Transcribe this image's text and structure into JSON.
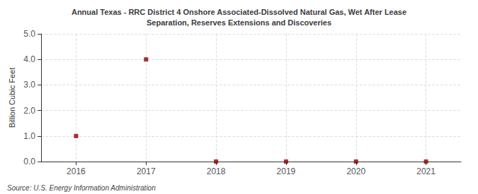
{
  "chart_data": {
    "type": "scatter",
    "title": "Annual Texas - RRC District 4 Onshore Associated-Dissolved Natural Gas, Wet After Lease\nSeparation, Reserves Extensions and Discoveries",
    "ylabel": "Billion Cubic Feet",
    "annotation": "Source: U.S. Energy Information Administration",
    "x": [
      2016,
      2017,
      2018,
      2019,
      2020,
      2021
    ],
    "values": [
      1.0,
      4.0,
      0.0,
      0.0,
      0.0,
      0.0
    ],
    "color": "#8B0000",
    "marker": "square",
    "xlim": [
      2015.5,
      2021.5
    ],
    "xticks": [
      2016,
      2017,
      2018,
      2019,
      2020,
      2021
    ],
    "ylim": [
      0.0,
      5.0
    ],
    "yticks": [
      {
        "value": 0.0,
        "label": "0.0"
      },
      {
        "value": 1.0,
        "label": "1.0"
      },
      {
        "value": 2.0,
        "label": "2.0"
      },
      {
        "value": 3.0,
        "label": "3.0"
      },
      {
        "value": 4.0,
        "label": "4.0"
      },
      {
        "value": 5.0,
        "label": "5.0"
      }
    ],
    "grid": true
  }
}
